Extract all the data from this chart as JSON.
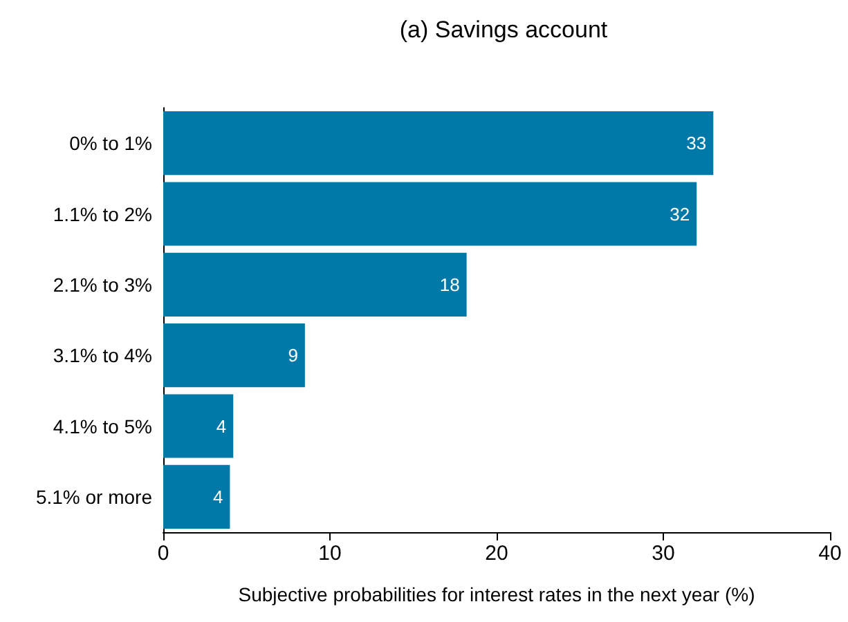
{
  "chart_data": {
    "type": "bar",
    "orientation": "horizontal",
    "title": "(a) Savings account",
    "xlabel": "Subjective probabilities for interest rates in the next year (%)",
    "categories": [
      "0% to 1%",
      "1.1% to 2%",
      "2.1% to 3%",
      "3.1% to 4%",
      "4.1% to 5%",
      "5.1% or more"
    ],
    "values": [
      33,
      32,
      18.2,
      8.5,
      4.2,
      4.0
    ],
    "value_labels": [
      "33",
      "32",
      "18",
      "9",
      "4",
      "4"
    ],
    "color": "#0079a8",
    "xlim": [
      0,
      40
    ],
    "xticks": [
      0,
      10,
      20,
      30,
      40
    ]
  }
}
